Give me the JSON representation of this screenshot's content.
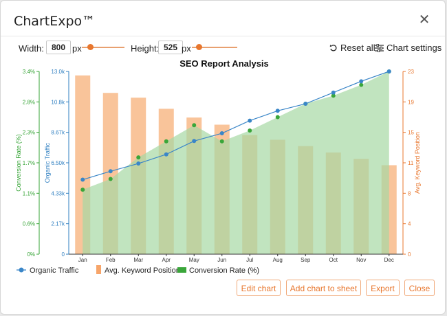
{
  "dialog": {
    "title": "ChartExpo™",
    "close_icon": "close-icon"
  },
  "toolbar": {
    "width_label": "Width:",
    "width_value": "800",
    "width_unit": "px",
    "height_label": "Height:",
    "height_value": "525",
    "height_unit": "px",
    "reset_label": "Reset all",
    "reset_icon": "reset-icon",
    "settings_label": "Chart settings",
    "settings_icon": "settings-sliders-icon"
  },
  "footer": {
    "edit_label": "Edit chart",
    "add_label": "Add chart to sheet",
    "export_label": "Export",
    "close_label": "Close"
  },
  "colors": {
    "accent": "#e8772e",
    "traffic": "#3a86c8",
    "keyword": "#f9c49a",
    "conversion_fill": "#a6d9a4",
    "conversion_point": "#3aa63a",
    "conversion_axis": "#34a334",
    "traffic_axis": "#2f7fc1",
    "keyword_axis": "#e8772e"
  },
  "chart_data": {
    "type": "combo",
    "title": "SEO Report Analysis",
    "categories": [
      "Jan",
      "Feb",
      "Mar",
      "Apr",
      "May",
      "Jun",
      "Jul",
      "Aug",
      "Sep",
      "Oct",
      "Nov",
      "Dec"
    ],
    "axes": {
      "left_outer": {
        "label": "Conversion Rate (%)",
        "ticks": [
          "0%",
          "0.6%",
          "1.1%",
          "1.7%",
          "2.3%",
          "2.8%",
          "3.4%"
        ],
        "range": [
          0,
          3.4
        ]
      },
      "left_inner": {
        "label": "Organic Traffic",
        "ticks": [
          "0",
          "2.17k",
          "4.33k",
          "6.50k",
          "8.67k",
          "10.8k",
          "13.0k"
        ],
        "range": [
          0,
          13000
        ]
      },
      "right": {
        "label": "Avg. Keyword Position",
        "ticks": [
          "0",
          "4",
          "8",
          "11",
          "15",
          "19",
          "23"
        ],
        "range": [
          0,
          23
        ]
      }
    },
    "series": [
      {
        "name": "Organic Traffic",
        "type": "line",
        "values": [
          5300,
          5900,
          6450,
          7100,
          8050,
          8600,
          9500,
          10200,
          10700,
          11500,
          12300,
          13000
        ]
      },
      {
        "name": "Avg. Keyword Position",
        "type": "bar",
        "values": [
          22.5,
          20.3,
          19.7,
          18.3,
          17.2,
          16.3,
          15.0,
          14.4,
          13.6,
          12.8,
          12.0,
          11.2
        ]
      },
      {
        "name": "Conversion Rate (%)",
        "type": "area",
        "values": [
          1.2,
          1.4,
          1.8,
          2.1,
          2.4,
          2.1,
          2.3,
          2.55,
          2.8,
          2.95,
          3.15,
          3.4
        ]
      }
    ],
    "legend_position": "bottom-left",
    "grid": false
  }
}
